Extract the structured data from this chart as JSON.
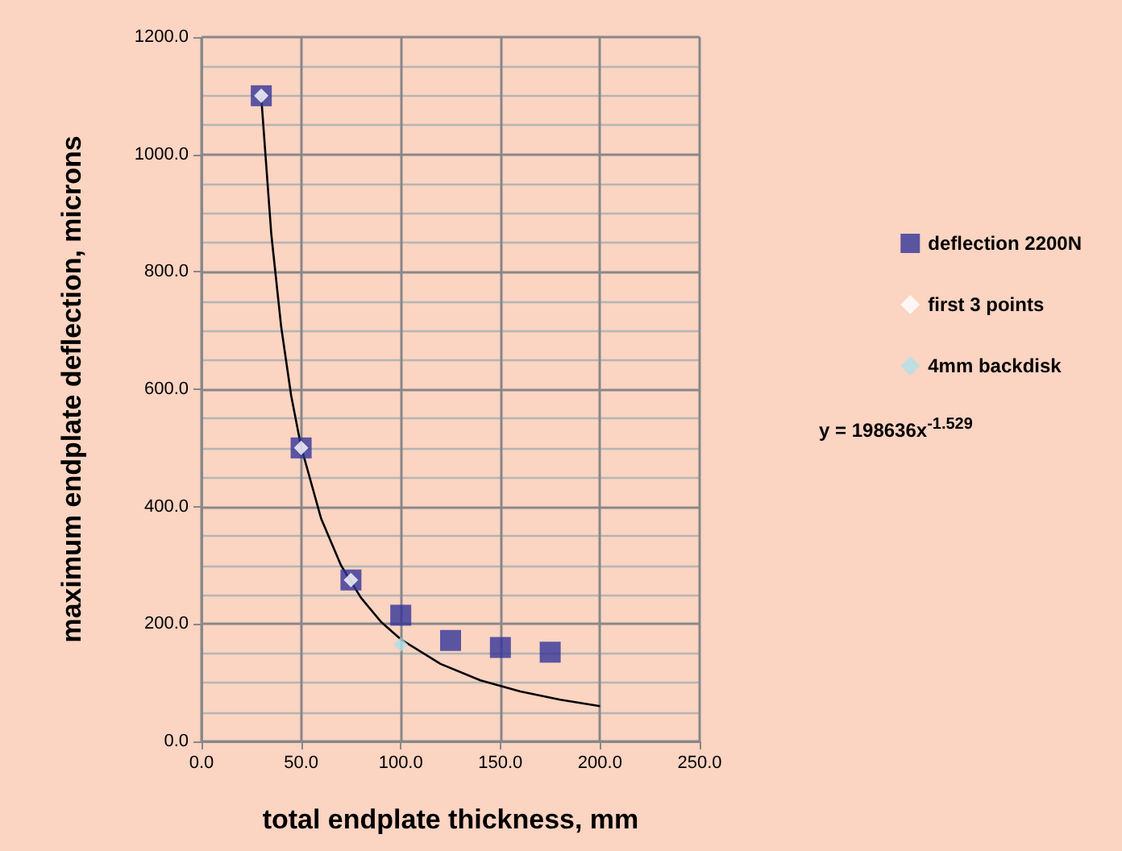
{
  "chart_data": {
    "type": "scatter",
    "xlabel": "total endplate thickness, mm",
    "ylabel": "maximum endplate deflection, microns",
    "xlim": [
      0,
      250
    ],
    "xticks": [
      {
        "value": 0,
        "label": "0.0"
      },
      {
        "value": 50,
        "label": "50.0"
      },
      {
        "value": 100,
        "label": "100.0"
      },
      {
        "value": 150,
        "label": "150.0"
      },
      {
        "value": 200,
        "label": "200.0"
      },
      {
        "value": 250,
        "label": "250.0"
      }
    ],
    "ylim": [
      0,
      1200
    ],
    "yticks": [
      {
        "value": 0,
        "label": "0.0"
      },
      {
        "value": 200,
        "label": "200.0"
      },
      {
        "value": 400,
        "label": "400.0"
      },
      {
        "value": 600,
        "label": "600.0"
      },
      {
        "value": 800,
        "label": "800.0"
      },
      {
        "value": 1000,
        "label": "1000.0"
      },
      {
        "value": 1200,
        "label": "1200.0"
      }
    ],
    "grid": true,
    "legend": "right",
    "series": [
      {
        "name": "deflection 2200N",
        "color": "#333399",
        "marker": "square",
        "x": [
          30,
          50,
          75,
          100,
          125,
          150,
          175
        ],
        "values": [
          1100,
          500,
          275,
          215,
          172,
          160,
          152
        ]
      },
      {
        "name": "first 3 points",
        "color": "#ffffff",
        "marker": "diamond",
        "x": [
          30,
          50,
          75
        ],
        "values": [
          1100,
          500,
          275
        ]
      },
      {
        "name": "4mm backdisk",
        "color": "#b0e0e8",
        "marker": "diamond",
        "x": [
          100
        ],
        "values": [
          165
        ]
      },
      {
        "type": "line",
        "color": "#000000",
        "marker": "none",
        "x": [
          30,
          35,
          40,
          45,
          50,
          60,
          70,
          80,
          90,
          100,
          120,
          140,
          160,
          180,
          200
        ],
        "values": [
          1097,
          865,
          706,
          589,
          502,
          380,
          300,
          245,
          204,
          174,
          132,
          104,
          85,
          71,
          60
        ]
      }
    ],
    "annotations": [
      "y = 198636x$^{-1.529}$"
    ]
  }
}
